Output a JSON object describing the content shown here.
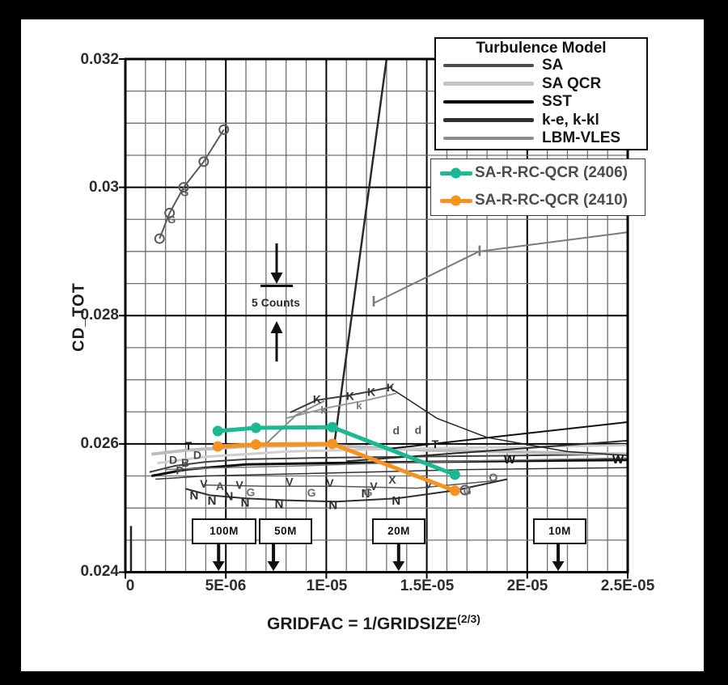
{
  "panel": {
    "background": "#ffffff",
    "frame_color": "#000000"
  },
  "axes": {
    "x_title": "GRIDFAC = 1/GRIDSIZE",
    "x_title_sup": "(2/3)",
    "y_title": "CD_TOT",
    "x_ticks": [
      {
        "label": "0"
      },
      {
        "label": "5E-06"
      },
      {
        "label": "1E-05"
      },
      {
        "label": "1.5E-05"
      },
      {
        "label": "2E-05"
      },
      {
        "label": "2.5E-05"
      }
    ],
    "y_ticks": [
      {
        "label": "0.032"
      },
      {
        "label": "0.03"
      },
      {
        "label": "0.028"
      },
      {
        "label": "0.026"
      },
      {
        "label": "0.024"
      }
    ]
  },
  "legend": {
    "title": "Turbulence Model",
    "items": [
      {
        "label": "SA",
        "color": "#4d4d4d",
        "width": 4
      },
      {
        "label": "SA QCR",
        "color": "#c3c3c3",
        "width": 5
      },
      {
        "label": "SST",
        "color": "#000000",
        "width": 4
      },
      {
        "label": "k-e, k-kl",
        "color": "#303030",
        "width": 5
      },
      {
        "label": "LBM-VLES",
        "color": "#8d8d8d",
        "width": 4
      }
    ]
  },
  "highlight_legend": {
    "items": [
      {
        "label": "SA-R-RC-QCR (2406)",
        "color": "#1ab992"
      },
      {
        "label": "SA-R-RC-QCR (2410)",
        "color": "#f6921e"
      }
    ]
  },
  "annotations": {
    "counts_label": "5 Counts",
    "grid_markers": [
      {
        "label": "100M",
        "gridfac": 4.64e-06
      },
      {
        "label": "50M",
        "gridfac": 7.37e-06
      },
      {
        "label": "20M",
        "gridfac": 1.36e-05
      },
      {
        "label": "10M",
        "gridfac": 2.154e-05
      }
    ]
  },
  "chart_data": {
    "type": "line",
    "title": "",
    "xlabel": "GRIDFAC = 1/GRIDSIZE^(2/3)",
    "ylabel": "CD_TOT",
    "xlim": [
      0,
      2.5e-05
    ],
    "ylim": [
      0.024,
      0.032
    ],
    "x_minor_step": 1e-06,
    "x_major_step": 5e-06,
    "y_minor_step": 0.0005,
    "y_major_step": 0.002,
    "grid": true,
    "legend_position": "top-right",
    "highlight_series": [
      {
        "name": "SA-R-RC-QCR (2406)",
        "color": "#1ab992",
        "marker": "circle",
        "x": [
          4.6e-06,
          6.5e-06,
          1.03e-05,
          1.64e-05
        ],
        "y": [
          0.0262,
          0.02625,
          0.02626,
          0.02552
        ]
      },
      {
        "name": "SA-R-RC-QCR (2410)",
        "color": "#f6921e",
        "marker": "circle",
        "x": [
          4.6e-06,
          6.5e-06,
          1.03e-05,
          1.64e-05
        ],
        "y": [
          0.02596,
          0.02599,
          0.026,
          0.02527
        ]
      }
    ],
    "background_series": [
      {
        "name": "lbm-vles-G-line",
        "color": "#5a5a5a",
        "width": 2,
        "marker": "open-circle",
        "x": [
          1.7e-06,
          2.2e-06,
          2.9e-06,
          3.9e-06,
          4.9e-06
        ],
        "y": [
          0.0292,
          0.0296,
          0.03,
          0.0304,
          0.0309
        ]
      },
      {
        "name": "grey-I-line",
        "color": "#7a7a7a",
        "width": 2,
        "marker": "none",
        "x": [
          1.24e-05,
          1.76e-05,
          2.5e-05
        ],
        "y": [
          0.0282,
          0.029,
          0.0293
        ]
      },
      {
        "name": "steep-ke-line",
        "color": "#2a2a2a",
        "width": 2.5,
        "marker": "none",
        "x": [
          1.04e-05,
          1.3e-05
        ],
        "y": [
          0.026,
          0.032
        ]
      },
      {
        "name": "sa-dark-flat",
        "color": "#3f3f3f",
        "width": 2,
        "marker": "none",
        "x": [
          1.2e-06,
          2.5e-06,
          4e-06,
          6e-06,
          9e-06,
          1.4e-05,
          2e-05,
          2.5e-05
        ],
        "y": [
          0.02556,
          0.02566,
          0.02572,
          0.02576,
          0.02578,
          0.0258,
          0.02582,
          0.02584
        ]
      },
      {
        "name": "sst-black-flat",
        "color": "#0e0e0e",
        "width": 3,
        "marker": "none",
        "x": [
          1.3e-06,
          3e-06,
          6e-06,
          1e-05,
          1.5e-05,
          2.5e-05
        ],
        "y": [
          0.0255,
          0.0256,
          0.02568,
          0.0257,
          0.02572,
          0.02575
        ]
      },
      {
        "name": "saqcr-light",
        "color": "#bdbdbd",
        "width": 4,
        "marker": "none",
        "x": [
          1.3e-06,
          3e-06,
          6e-06,
          1e-05,
          1.5e-05,
          2.5e-05
        ],
        "y": [
          0.02584,
          0.0259,
          0.02596,
          0.02598,
          0.0259,
          0.02584
        ]
      },
      {
        "name": "saqcr-light-2",
        "color": "#cfcfcf",
        "width": 3,
        "marker": "none",
        "x": [
          1.6e-06,
          4e-06,
          8e-06,
          1.3e-05,
          2.5e-05
        ],
        "y": [
          0.0257,
          0.0258,
          0.02588,
          0.02592,
          0.02598
        ]
      },
      {
        "name": "black-rising",
        "color": "#111111",
        "width": 2,
        "marker": "none",
        "x": [
          1.3e-05,
          2.5e-05
        ],
        "y": [
          0.02592,
          0.02634
        ]
      },
      {
        "name": "dark-rising",
        "color": "#2c2c2c",
        "width": 2,
        "marker": "none",
        "x": [
          1.1e-05,
          2.5e-05
        ],
        "y": [
          0.02573,
          0.02605
        ]
      },
      {
        "name": "n-dip-line",
        "color": "#2f2f2f",
        "width": 2,
        "marker": "none",
        "x": [
          3e-06,
          4.2e-06,
          6e-06,
          8e-06,
          1.05e-05,
          1.35e-05,
          1.65e-05,
          1.9e-05
        ],
        "y": [
          0.0253,
          0.0252,
          0.02515,
          0.02512,
          0.0251,
          0.02515,
          0.02528,
          0.02545
        ]
      },
      {
        "name": "v-line",
        "color": "#555555",
        "width": 1.5,
        "marker": "none",
        "x": [
          3.8e-06,
          7e-06,
          1.05e-05,
          1.45e-05,
          1.85e-05
        ],
        "y": [
          0.02536,
          0.02534,
          0.02534,
          0.02531,
          0.02543
        ]
      },
      {
        "name": "k-line",
        "color": "#3c3c3c",
        "width": 2,
        "marker": "none",
        "x": [
          8.2e-06,
          9.5e-06,
          1.12e-05,
          1.22e-05,
          1.33e-05
        ],
        "y": [
          0.02649,
          0.02668,
          0.02676,
          0.02682,
          0.02689
        ]
      },
      {
        "name": "k-line-grey",
        "color": "#999999",
        "width": 2,
        "marker": "none",
        "x": [
          8e-06,
          1e-05,
          1.2e-05,
          1.35e-05
        ],
        "y": [
          0.0264,
          0.02656,
          0.02668,
          0.02679
        ]
      },
      {
        "name": "descending-dark",
        "color": "#222222",
        "width": 1.5,
        "marker": "none",
        "x": [
          1.33e-05,
          1.55e-05,
          1.8e-05,
          2.2e-05,
          2.5e-05
        ],
        "y": [
          0.02685,
          0.0264,
          0.0261,
          0.02588,
          0.02582
        ]
      },
      {
        "name": "rise-to-k",
        "color": "#8a8a8a",
        "width": 2,
        "marker": "none",
        "x": [
          7e-06,
          8.5e-06,
          9.9e-06
        ],
        "y": [
          0.026,
          0.02645,
          0.02667
        ]
      },
      {
        "name": "left-drop",
        "color": "#222222",
        "width": 2.5,
        "marker": "none",
        "x": [
          2.8e-07,
          2.8e-07
        ],
        "y": [
          0.024,
          0.02472
        ]
      },
      {
        "name": "grey-mid-flat",
        "color": "#777777",
        "width": 1.5,
        "marker": "none",
        "x": [
          2e-06,
          5e-06,
          9e-06,
          1.3e-05,
          1.8e-05,
          2.5e-05
        ],
        "y": [
          0.0256,
          0.02563,
          0.02566,
          0.0257,
          0.02574,
          0.02578
        ]
      },
      {
        "name": "dark-low-flat",
        "color": "#333333",
        "width": 1.5,
        "marker": "none",
        "x": [
          1.5e-06,
          4e-06,
          8e-06,
          1.2e-05,
          1.7e-05,
          2.5e-05
        ],
        "y": [
          0.02545,
          0.0255,
          0.02553,
          0.02556,
          0.0256,
          0.02563
        ]
      },
      {
        "name": "g-end-marker",
        "color": "#5a5a5a",
        "width": 1.5,
        "marker": "open-circle",
        "x": [
          1.69e-05
        ],
        "y": [
          0.02528
        ]
      }
    ],
    "letters": [
      {
        "ch": "N",
        "x": 3.42e-06,
        "y": 0.0252,
        "color": "#2b2b2b",
        "size": 15
      },
      {
        "ch": "N",
        "x": 4.31e-06,
        "y": 0.02512,
        "color": "#2b2b2b",
        "size": 15
      },
      {
        "ch": "N",
        "x": 5.15e-06,
        "y": 0.02519,
        "color": "#2b2b2b",
        "size": 15
      },
      {
        "ch": "N",
        "x": 5.96e-06,
        "y": 0.02509,
        "color": "#2b2b2b",
        "size": 15
      },
      {
        "ch": "N",
        "x": 7.65e-06,
        "y": 0.02507,
        "color": "#2b2b2b",
        "size": 15
      },
      {
        "ch": "N",
        "x": 1.034e-05,
        "y": 0.02505,
        "color": "#2b2b2b",
        "size": 15
      },
      {
        "ch": "N",
        "x": 1.196e-05,
        "y": 0.02523,
        "color": "#2b2b2b",
        "size": 15
      },
      {
        "ch": "N",
        "x": 1.348e-05,
        "y": 0.02512,
        "color": "#2b2b2b",
        "size": 15
      },
      {
        "ch": "V",
        "x": 3.9e-06,
        "y": 0.02538,
        "color": "#3d3d3d",
        "size": 14
      },
      {
        "ch": "V",
        "x": 5.68e-06,
        "y": 0.02536,
        "color": "#3d3d3d",
        "size": 14
      },
      {
        "ch": "V",
        "x": 8.17e-06,
        "y": 0.02541,
        "color": "#3d3d3d",
        "size": 14
      },
      {
        "ch": "V",
        "x": 1.018e-05,
        "y": 0.02539,
        "color": "#3d3d3d",
        "size": 14
      },
      {
        "ch": "V",
        "x": 1.236e-05,
        "y": 0.02534,
        "color": "#3d3d3d",
        "size": 14
      },
      {
        "ch": "V",
        "x": 1.509e-05,
        "y": 0.02537,
        "color": "#3d3d3d",
        "size": 14
      },
      {
        "ch": "G",
        "x": 6.24e-06,
        "y": 0.02525,
        "color": "#6e6e6e",
        "size": 14
      },
      {
        "ch": "G",
        "x": 9.26e-06,
        "y": 0.02524,
        "color": "#6e6e6e",
        "size": 14
      },
      {
        "ch": "G",
        "x": 1.208e-05,
        "y": 0.02525,
        "color": "#6e6e6e",
        "size": 14
      },
      {
        "ch": "G",
        "x": 1.702e-05,
        "y": 0.02527,
        "color": "#6e6e6e",
        "size": 13
      },
      {
        "ch": "K",
        "x": 9.54e-06,
        "y": 0.0267,
        "color": "#333333",
        "size": 14
      },
      {
        "ch": "K",
        "x": 1.119e-05,
        "y": 0.02675,
        "color": "#333333",
        "size": 14
      },
      {
        "ch": "K",
        "x": 1.224e-05,
        "y": 0.02681,
        "color": "#333333",
        "size": 14
      },
      {
        "ch": "K",
        "x": 1.32e-05,
        "y": 0.02688,
        "color": "#333333",
        "size": 14
      },
      {
        "ch": "k",
        "x": 9.86e-06,
        "y": 0.02653,
        "color": "#7a7a7a",
        "size": 13
      },
      {
        "ch": "k",
        "x": 1.163e-05,
        "y": 0.0266,
        "color": "#7a7a7a",
        "size": 13
      },
      {
        "ch": "D",
        "x": 2.38e-06,
        "y": 0.02575,
        "color": "#4a4a4a",
        "size": 14
      },
      {
        "ch": "D",
        "x": 3.58e-06,
        "y": 0.02583,
        "color": "#4a4a4a",
        "size": 14
      },
      {
        "ch": "B",
        "x": 2.98e-06,
        "y": 0.02571,
        "color": "#4a4a4a",
        "size": 14
      },
      {
        "ch": "P",
        "x": 2.7e-06,
        "y": 0.02559,
        "color": "#4a4a4a",
        "size": 14
      },
      {
        "ch": "d",
        "x": 1.348e-05,
        "y": 0.02621,
        "color": "#555555",
        "size": 14
      },
      {
        "ch": "d",
        "x": 1.457e-05,
        "y": 0.02622,
        "color": "#555555",
        "size": 14
      },
      {
        "ch": "T",
        "x": 3.14e-06,
        "y": 0.02597,
        "color": "#222222",
        "size": 14
      },
      {
        "ch": "T",
        "x": 1.542e-05,
        "y": 0.026,
        "color": "#222222",
        "size": 14
      },
      {
        "ch": "W",
        "x": 1.912e-05,
        "y": 0.02576,
        "color": "#111111",
        "size": 15
      },
      {
        "ch": "W",
        "x": 2.452e-05,
        "y": 0.02576,
        "color": "#111111",
        "size": 15
      },
      {
        "ch": "O",
        "x": 1.831e-05,
        "y": 0.02548,
        "color": "#666666",
        "size": 14
      },
      {
        "ch": "X",
        "x": 1.328e-05,
        "y": 0.02544,
        "color": "#444444",
        "size": 14
      },
      {
        "ch": "A",
        "x": 4.71e-06,
        "y": 0.02534,
        "color": "#555555",
        "size": 14
      },
      {
        "ch": "I",
        "x": 1.236e-05,
        "y": 0.02822,
        "color": "#7a7a7a",
        "size": 18
      },
      {
        "ch": "I",
        "x": 1.763e-05,
        "y": 0.02901,
        "color": "#7a7a7a",
        "size": 18
      },
      {
        "ch": "G",
        "x": 2.3e-06,
        "y": 0.0295,
        "color": "#5a5a5a",
        "size": 13
      },
      {
        "ch": "G",
        "x": 2.95e-06,
        "y": 0.02992,
        "color": "#5a5a5a",
        "size": 13
      }
    ]
  }
}
